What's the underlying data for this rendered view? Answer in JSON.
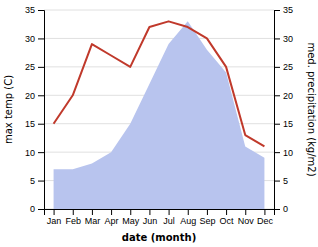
{
  "chart_data": {
    "type": "line",
    "categories": [
      "Jan",
      "Feb",
      "Mar",
      "Apr",
      "May",
      "Jun",
      "Jul",
      "Aug",
      "Sep",
      "Oct",
      "Nov",
      "Dec"
    ],
    "series": [
      {
        "type": "area",
        "axis": "y2",
        "color": "#b8c4ee",
        "values": [
          7,
          7,
          8,
          10,
          15,
          22,
          29,
          33,
          28,
          24,
          11,
          9
        ]
      },
      {
        "type": "line",
        "color": "#c0392b",
        "values": [
          15,
          20,
          29,
          27,
          25,
          32,
          33,
          32,
          30,
          25,
          13,
          11
        ]
      }
    ],
    "xlabel": "date (month)",
    "ylabel": "max temp (C)",
    "y2label": "med. precipitation (kg/m2)",
    "ylim": [
      0,
      35
    ],
    "yticks": [
      0,
      5,
      10,
      15,
      20,
      25,
      30,
      35
    ],
    "y2lim": [
      0,
      35
    ],
    "y2ticks": [
      0,
      5,
      10,
      15,
      20,
      25,
      30,
      35
    ],
    "grid": true
  }
}
